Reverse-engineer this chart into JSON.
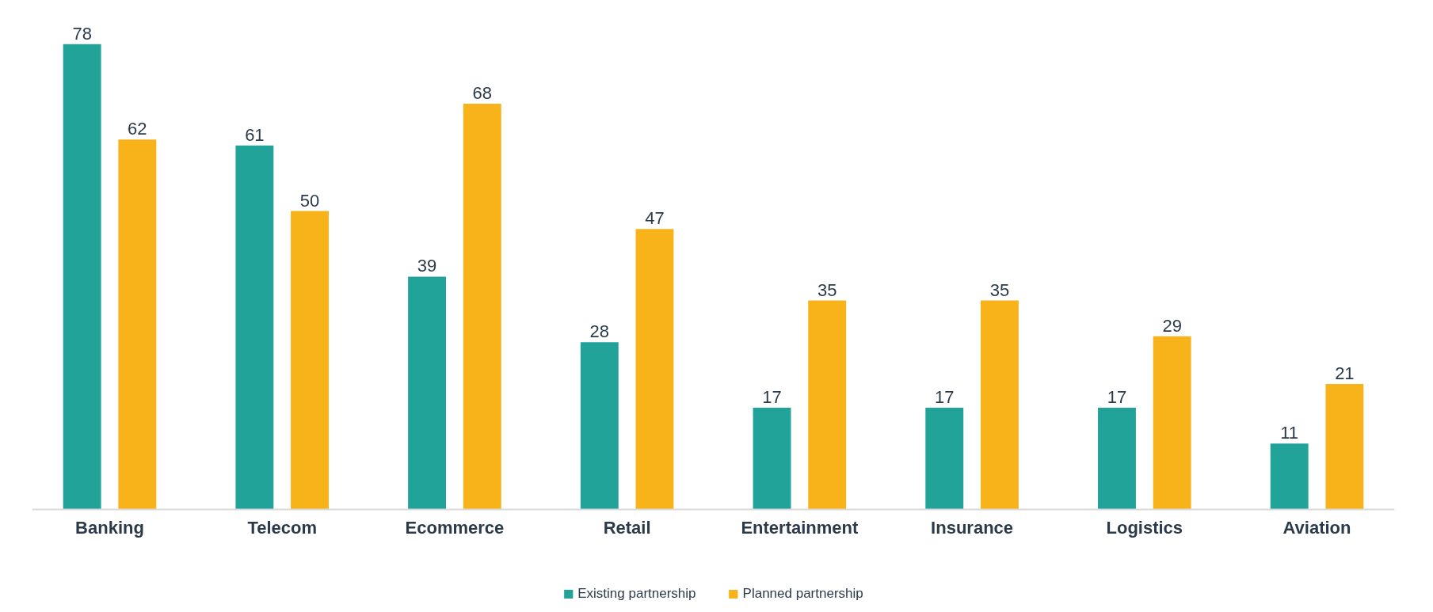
{
  "chart_data": {
    "type": "bar",
    "categories": [
      "Banking",
      "Telecom",
      "Ecommerce",
      "Retail",
      "Entertainment",
      "Insurance",
      "Logistics",
      "Aviation"
    ],
    "series": [
      {
        "name": "Existing partnership",
        "color": "#22a39a",
        "values": [
          78,
          61,
          39,
          28,
          17,
          17,
          17,
          11
        ]
      },
      {
        "name": "Planned partnership",
        "color": "#f8b21a",
        "values": [
          62,
          50,
          68,
          47,
          35,
          35,
          29,
          21
        ]
      }
    ],
    "data_labels": true,
    "legend": "bottom",
    "grid": false
  }
}
